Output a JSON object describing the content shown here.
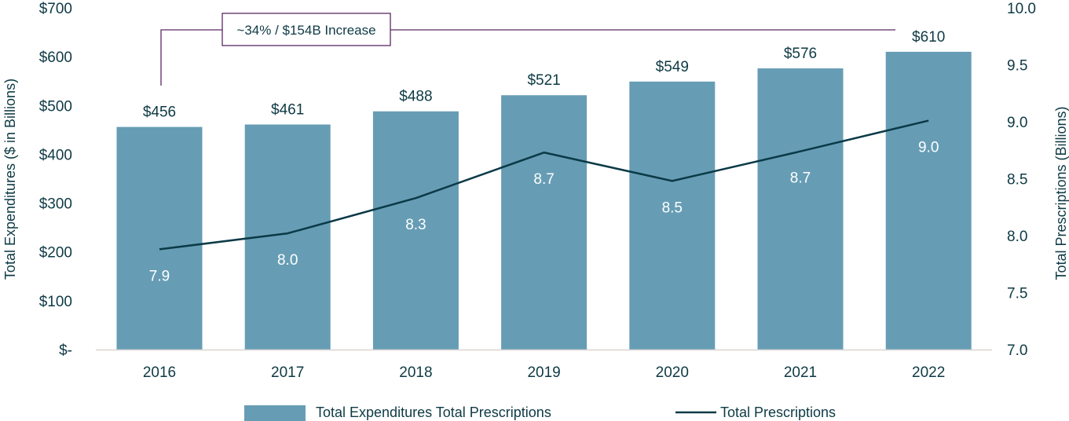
{
  "chart_data": {
    "type": "bar",
    "title": "",
    "categories": [
      "2016",
      "2017",
      "2018",
      "2019",
      "2020",
      "2021",
      "2022"
    ],
    "series": [
      {
        "name": "Total Expenditures Total Prescriptions",
        "type": "bar",
        "axis": "left",
        "values": [
          456,
          461,
          488,
          521,
          549,
          576,
          610
        ],
        "labels": [
          "$456",
          "$461",
          "$488",
          "$521",
          "$549",
          "$576",
          "$610"
        ],
        "color": "#669db5"
      },
      {
        "name": "Total Prescriptions",
        "type": "line",
        "axis": "right",
        "values": [
          7.88,
          8.02,
          8.33,
          8.73,
          8.48,
          8.74,
          9.01
        ],
        "labels": [
          "7.9",
          "8.0",
          "8.3",
          "8.7",
          "8.5",
          "8.7",
          "9.0"
        ],
        "color": "#0b3a47"
      }
    ],
    "left_axis": {
      "label": "Total Expenditures ($ in Billions)",
      "ylim": [
        0,
        700
      ],
      "ticks": [
        0,
        100,
        200,
        300,
        400,
        500,
        600,
        700
      ],
      "tick_labels": [
        "$-",
        "$100",
        "$200",
        "$300",
        "$400",
        "$500",
        "$600",
        "$700"
      ]
    },
    "right_axis": {
      "label": "Total Prescriptions (Billions)",
      "ylim": [
        7.0,
        10.0
      ],
      "ticks": [
        7.0,
        7.5,
        8.0,
        8.5,
        9.0,
        9.5,
        10.0
      ],
      "tick_labels": [
        "7.0",
        "7.5",
        "8.0",
        "8.5",
        "9.0",
        "9.5",
        "10.0"
      ]
    },
    "annotation": {
      "text": "~34% / $154B Increase",
      "from_category": "2016",
      "to_category": "2022",
      "color": "#5a2a62"
    },
    "grid": false,
    "legend": {
      "position": "bottom",
      "entries": [
        {
          "label": "Total Expenditures Total Prescriptions",
          "marker": "bar"
        },
        {
          "label": "Total Prescriptions",
          "marker": "line"
        }
      ]
    },
    "colors": {
      "text": "#0e3a45",
      "baseline": "#d9d5d0"
    }
  }
}
